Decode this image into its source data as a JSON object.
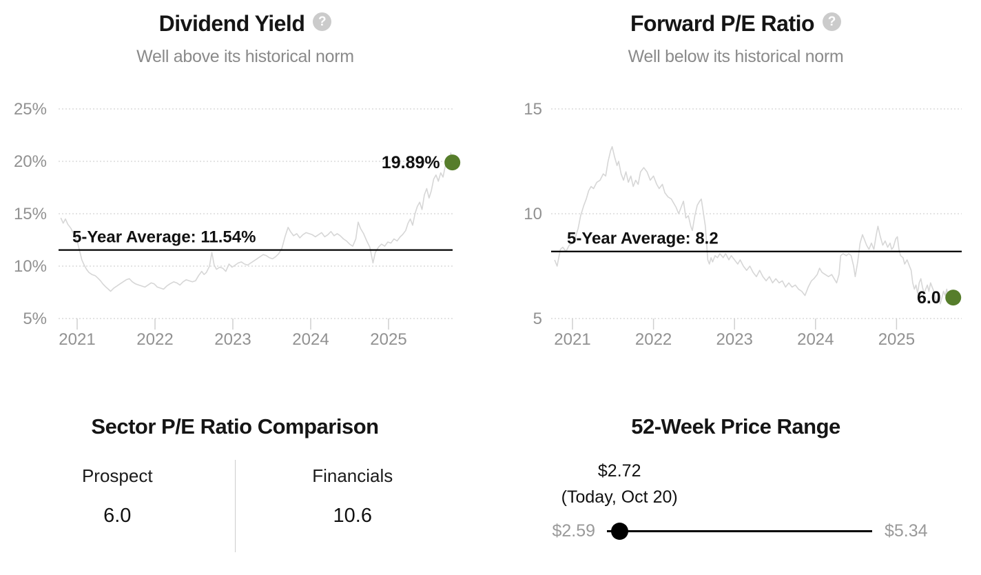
{
  "icons": {
    "help": "?"
  },
  "colors": {
    "accent_green": "#567d2b",
    "series_line": "#d6d6d6",
    "average_line": "#000000",
    "grid_line": "#e3e3e3",
    "axis_text": "#919191",
    "tick_mark": "#cfcfcf",
    "subtitle_text": "#8a8a8a",
    "annotation_text": "#111111",
    "muted_text": "#9a9a9a"
  },
  "chart_data": [
    {
      "type": "line",
      "title": "Dividend Yield",
      "subtitle": "Well above its historical norm",
      "unit": "%",
      "ylim": [
        3.5,
        26.5
      ],
      "yticks": [
        5,
        10,
        15,
        20,
        25
      ],
      "ytick_labels": [
        "5%",
        "10%",
        "15%",
        "20%",
        "25%"
      ],
      "xticks": [
        2021,
        2022,
        2023,
        2024,
        2025
      ],
      "xtick_labels": [
        "2021",
        "2022",
        "2023",
        "2024",
        "2025"
      ],
      "grid": true,
      "legend": "none",
      "average": {
        "label": "5-Year Average: 11.54%",
        "value": 11.54
      },
      "last_point": {
        "label": "19.89%",
        "value": 19.89,
        "x": 2025.82
      },
      "points": [
        [
          2020.79,
          14.6
        ],
        [
          2020.82,
          14.1
        ],
        [
          2020.85,
          14.5
        ],
        [
          2020.88,
          14.0
        ],
        [
          2020.92,
          13.6
        ],
        [
          2020.96,
          13.0
        ],
        [
          2021.0,
          12.4
        ],
        [
          2021.03,
          11.5
        ],
        [
          2021.06,
          10.6
        ],
        [
          2021.09,
          10.1
        ],
        [
          2021.12,
          9.7
        ],
        [
          2021.15,
          9.4
        ],
        [
          2021.19,
          9.2
        ],
        [
          2021.23,
          9.1
        ],
        [
          2021.26,
          8.9
        ],
        [
          2021.3,
          8.6
        ],
        [
          2021.33,
          8.3
        ],
        [
          2021.37,
          8.0
        ],
        [
          2021.4,
          7.8
        ],
        [
          2021.43,
          7.6
        ],
        [
          2021.47,
          7.9
        ],
        [
          2021.51,
          8.1
        ],
        [
          2021.55,
          8.3
        ],
        [
          2021.59,
          8.5
        ],
        [
          2021.63,
          8.7
        ],
        [
          2021.67,
          8.8
        ],
        [
          2021.71,
          8.5
        ],
        [
          2021.75,
          8.3
        ],
        [
          2021.79,
          8.2
        ],
        [
          2021.83,
          8.1
        ],
        [
          2021.87,
          8.0
        ],
        [
          2021.91,
          8.2
        ],
        [
          2021.95,
          8.4
        ],
        [
          2021.99,
          8.3
        ],
        [
          2022.03,
          8.0
        ],
        [
          2022.07,
          7.9
        ],
        [
          2022.11,
          7.8
        ],
        [
          2022.15,
          8.1
        ],
        [
          2022.19,
          8.3
        ],
        [
          2022.24,
          8.5
        ],
        [
          2022.28,
          8.4
        ],
        [
          2022.32,
          8.2
        ],
        [
          2022.36,
          8.5
        ],
        [
          2022.4,
          8.7
        ],
        [
          2022.44,
          8.6
        ],
        [
          2022.48,
          8.5
        ],
        [
          2022.52,
          8.6
        ],
        [
          2022.56,
          9.1
        ],
        [
          2022.6,
          9.5
        ],
        [
          2022.63,
          9.2
        ],
        [
          2022.66,
          9.4
        ],
        [
          2022.7,
          10.0
        ],
        [
          2022.73,
          11.3
        ],
        [
          2022.76,
          10.1
        ],
        [
          2022.79,
          9.7
        ],
        [
          2022.83,
          9.9
        ],
        [
          2022.87,
          9.8
        ],
        [
          2022.91,
          9.5
        ],
        [
          2022.95,
          10.2
        ],
        [
          2022.99,
          9.9
        ],
        [
          2023.03,
          10.1
        ],
        [
          2023.07,
          10.3
        ],
        [
          2023.11,
          10.4
        ],
        [
          2023.15,
          10.2
        ],
        [
          2023.19,
          10.1
        ],
        [
          2023.23,
          10.3
        ],
        [
          2023.27,
          10.5
        ],
        [
          2023.31,
          10.7
        ],
        [
          2023.35,
          10.9
        ],
        [
          2023.39,
          11.1
        ],
        [
          2023.43,
          11.0
        ],
        [
          2023.47,
          10.8
        ],
        [
          2023.51,
          10.7
        ],
        [
          2023.55,
          10.9
        ],
        [
          2023.59,
          11.2
        ],
        [
          2023.63,
          11.7
        ],
        [
          2023.67,
          12.8
        ],
        [
          2023.71,
          13.7
        ],
        [
          2023.74,
          13.3
        ],
        [
          2023.78,
          12.9
        ],
        [
          2023.82,
          13.1
        ],
        [
          2023.86,
          12.7
        ],
        [
          2023.9,
          13.0
        ],
        [
          2023.94,
          13.2
        ],
        [
          2023.98,
          13.1
        ],
        [
          2024.02,
          13.0
        ],
        [
          2024.06,
          12.8
        ],
        [
          2024.1,
          13.0
        ],
        [
          2024.14,
          13.2
        ],
        [
          2024.18,
          12.8
        ],
        [
          2024.22,
          13.0
        ],
        [
          2024.26,
          13.3
        ],
        [
          2024.3,
          12.9
        ],
        [
          2024.34,
          13.1
        ],
        [
          2024.38,
          12.9
        ],
        [
          2024.42,
          12.6
        ],
        [
          2024.46,
          12.4
        ],
        [
          2024.5,
          12.1
        ],
        [
          2024.54,
          11.9
        ],
        [
          2024.58,
          12.6
        ],
        [
          2024.61,
          14.2
        ],
        [
          2024.64,
          13.6
        ],
        [
          2024.68,
          13.1
        ],
        [
          2024.72,
          12.4
        ],
        [
          2024.76,
          11.8
        ],
        [
          2024.8,
          10.3
        ],
        [
          2024.83,
          11.3
        ],
        [
          2024.87,
          11.8
        ],
        [
          2024.91,
          12.1
        ],
        [
          2024.95,
          11.9
        ],
        [
          2024.99,
          12.3
        ],
        [
          2025.03,
          12.2
        ],
        [
          2025.07,
          12.6
        ],
        [
          2025.11,
          12.4
        ],
        [
          2025.15,
          12.8
        ],
        [
          2025.18,
          13.0
        ],
        [
          2025.22,
          13.4
        ],
        [
          2025.25,
          14.1
        ],
        [
          2025.28,
          14.5
        ],
        [
          2025.31,
          13.9
        ],
        [
          2025.34,
          15.0
        ],
        [
          2025.37,
          15.7
        ],
        [
          2025.4,
          16.1
        ],
        [
          2025.43,
          15.4
        ],
        [
          2025.46,
          16.8
        ],
        [
          2025.49,
          17.4
        ],
        [
          2025.52,
          16.5
        ],
        [
          2025.55,
          17.2
        ],
        [
          2025.58,
          18.3
        ],
        [
          2025.61,
          18.7
        ],
        [
          2025.64,
          18.1
        ],
        [
          2025.67,
          18.9
        ],
        [
          2025.7,
          18.5
        ],
        [
          2025.73,
          19.6
        ],
        [
          2025.76,
          20.3
        ],
        [
          2025.78,
          19.9
        ],
        [
          2025.8,
          20.8
        ],
        [
          2025.82,
          19.89
        ]
      ]
    },
    {
      "type": "line",
      "title": "Forward P/E Ratio",
      "subtitle": "Well below its historical norm",
      "unit": "",
      "ylim": [
        3.5,
        15
      ],
      "yticks": [
        5,
        10,
        15
      ],
      "ytick_labels": [
        "5",
        "10",
        "15"
      ],
      "xticks": [
        2021,
        2022,
        2023,
        2024,
        2025
      ],
      "xtick_labels": [
        "2021",
        "2022",
        "2023",
        "2024",
        "2025"
      ],
      "grid": true,
      "legend": "none",
      "average": {
        "label": "5-Year Average: 8.2",
        "value": 8.2
      },
      "last_point": {
        "label": "6.0",
        "value": 6.0,
        "x": 2025.7
      },
      "points": [
        [
          2020.78,
          7.8
        ],
        [
          2020.81,
          7.5
        ],
        [
          2020.85,
          8.3
        ],
        [
          2020.88,
          8.4
        ],
        [
          2020.92,
          8.2
        ],
        [
          2020.96,
          8.5
        ],
        [
          2021.0,
          8.6
        ],
        [
          2021.03,
          8.8
        ],
        [
          2021.07,
          9.3
        ],
        [
          2021.1,
          9.9
        ],
        [
          2021.14,
          10.4
        ],
        [
          2021.17,
          10.7
        ],
        [
          2021.2,
          11.1
        ],
        [
          2021.23,
          11.3
        ],
        [
          2021.26,
          11.2
        ],
        [
          2021.3,
          11.5
        ],
        [
          2021.34,
          11.6
        ],
        [
          2021.38,
          11.9
        ],
        [
          2021.41,
          11.8
        ],
        [
          2021.44,
          12.5
        ],
        [
          2021.47,
          13.0
        ],
        [
          2021.49,
          13.2
        ],
        [
          2021.52,
          12.7
        ],
        [
          2021.55,
          12.3
        ],
        [
          2021.57,
          12.5
        ],
        [
          2021.6,
          11.9
        ],
        [
          2021.63,
          11.6
        ],
        [
          2021.66,
          12.0
        ],
        [
          2021.69,
          11.5
        ],
        [
          2021.72,
          11.8
        ],
        [
          2021.75,
          11.3
        ],
        [
          2021.78,
          11.6
        ],
        [
          2021.81,
          11.4
        ],
        [
          2021.84,
          12.0
        ],
        [
          2021.88,
          12.2
        ],
        [
          2021.92,
          12.0
        ],
        [
          2021.96,
          11.6
        ],
        [
          2022.0,
          11.8
        ],
        [
          2022.04,
          11.4
        ],
        [
          2022.07,
          11.2
        ],
        [
          2022.11,
          11.4
        ],
        [
          2022.14,
          11.0
        ],
        [
          2022.18,
          10.8
        ],
        [
          2022.22,
          10.7
        ],
        [
          2022.25,
          10.5
        ],
        [
          2022.28,
          10.3
        ],
        [
          2022.31,
          10.0
        ],
        [
          2022.34,
          10.3
        ],
        [
          2022.37,
          10.6
        ],
        [
          2022.4,
          9.8
        ],
        [
          2022.43,
          9.9
        ],
        [
          2022.46,
          9.4
        ],
        [
          2022.48,
          9.2
        ],
        [
          2022.51,
          9.9
        ],
        [
          2022.54,
          10.4
        ],
        [
          2022.57,
          10.6
        ],
        [
          2022.59,
          10.7
        ],
        [
          2022.61,
          10.2
        ],
        [
          2022.64,
          9.4
        ],
        [
          2022.67,
          7.8
        ],
        [
          2022.69,
          7.6
        ],
        [
          2022.71,
          7.9
        ],
        [
          2022.73,
          7.7
        ],
        [
          2022.76,
          8.0
        ],
        [
          2022.79,
          7.9
        ],
        [
          2022.82,
          8.1
        ],
        [
          2022.86,
          7.9
        ],
        [
          2022.89,
          8.1
        ],
        [
          2022.93,
          7.8
        ],
        [
          2022.96,
          8.0
        ],
        [
          2023.0,
          7.8
        ],
        [
          2023.04,
          7.6
        ],
        [
          2023.07,
          7.8
        ],
        [
          2023.11,
          7.5
        ],
        [
          2023.15,
          7.3
        ],
        [
          2023.19,
          7.5
        ],
        [
          2023.23,
          7.2
        ],
        [
          2023.27,
          7.0
        ],
        [
          2023.31,
          7.3
        ],
        [
          2023.35,
          7.0
        ],
        [
          2023.39,
          6.8
        ],
        [
          2023.43,
          7.0
        ],
        [
          2023.47,
          6.7
        ],
        [
          2023.51,
          6.9
        ],
        [
          2023.55,
          6.7
        ],
        [
          2023.59,
          6.8
        ],
        [
          2023.63,
          6.5
        ],
        [
          2023.67,
          6.7
        ],
        [
          2023.71,
          6.5
        ],
        [
          2023.75,
          6.6
        ],
        [
          2023.79,
          6.4
        ],
        [
          2023.83,
          6.3
        ],
        [
          2023.87,
          6.1
        ],
        [
          2023.91,
          6.5
        ],
        [
          2023.95,
          6.8
        ],
        [
          2023.98,
          6.9
        ],
        [
          2024.02,
          7.1
        ],
        [
          2024.05,
          7.4
        ],
        [
          2024.08,
          7.2
        ],
        [
          2024.12,
          7.1
        ],
        [
          2024.16,
          7.0
        ],
        [
          2024.2,
          7.1
        ],
        [
          2024.23,
          6.9
        ],
        [
          2024.26,
          6.7
        ],
        [
          2024.29,
          7.1
        ],
        [
          2024.31,
          8.0
        ],
        [
          2024.34,
          8.1
        ],
        [
          2024.38,
          8.0
        ],
        [
          2024.41,
          8.1
        ],
        [
          2024.44,
          8.0
        ],
        [
          2024.47,
          7.5
        ],
        [
          2024.49,
          7.0
        ],
        [
          2024.52,
          7.7
        ],
        [
          2024.55,
          8.6
        ],
        [
          2024.58,
          9.0
        ],
        [
          2024.6,
          8.8
        ],
        [
          2024.63,
          8.5
        ],
        [
          2024.66,
          8.3
        ],
        [
          2024.69,
          8.6
        ],
        [
          2024.72,
          8.3
        ],
        [
          2024.75,
          9.0
        ],
        [
          2024.77,
          9.4
        ],
        [
          2024.8,
          8.9
        ],
        [
          2024.83,
          8.5
        ],
        [
          2024.86,
          8.7
        ],
        [
          2024.89,
          8.4
        ],
        [
          2024.92,
          8.6
        ],
        [
          2024.94,
          8.3
        ],
        [
          2024.96,
          8.4
        ],
        [
          2024.99,
          8.8
        ],
        [
          2025.01,
          8.9
        ],
        [
          2025.03,
          8.3
        ],
        [
          2025.05,
          8.0
        ],
        [
          2025.08,
          7.9
        ],
        [
          2025.1,
          7.6
        ],
        [
          2025.13,
          7.8
        ],
        [
          2025.16,
          7.5
        ],
        [
          2025.18,
          7.3
        ],
        [
          2025.2,
          6.7
        ],
        [
          2025.22,
          6.4
        ],
        [
          2025.24,
          6.6
        ],
        [
          2025.26,
          6.2
        ],
        [
          2025.28,
          6.7
        ],
        [
          2025.3,
          6.9
        ],
        [
          2025.32,
          6.5
        ],
        [
          2025.34,
          6.2
        ],
        [
          2025.36,
          6.4
        ],
        [
          2025.38,
          6.6
        ],
        [
          2025.4,
          6.3
        ],
        [
          2025.42,
          6.7
        ],
        [
          2025.44,
          6.5
        ],
        [
          2025.46,
          6.3
        ],
        [
          2025.49,
          5.8
        ],
        [
          2025.52,
          6.05
        ],
        [
          2025.54,
          5.7
        ],
        [
          2025.56,
          6.0
        ],
        [
          2025.58,
          6.3
        ],
        [
          2025.6,
          6.1
        ],
        [
          2025.62,
          6.4
        ],
        [
          2025.64,
          5.95
        ],
        [
          2025.67,
          6.1
        ],
        [
          2025.7,
          6.0
        ]
      ]
    }
  ],
  "sector_comparison": {
    "title": "Sector P/E Ratio Comparison",
    "items": [
      {
        "label": "Prospect",
        "value": "6.0"
      },
      {
        "label": "Financials",
        "value": "10.6"
      }
    ]
  },
  "price_range": {
    "title": "52-Week Price Range",
    "current_price": "$2.72",
    "current_date_label": "(Today, Oct 20)",
    "low": "$2.59",
    "high": "$5.34",
    "low_value": 2.59,
    "high_value": 5.34,
    "current_value": 2.72
  }
}
